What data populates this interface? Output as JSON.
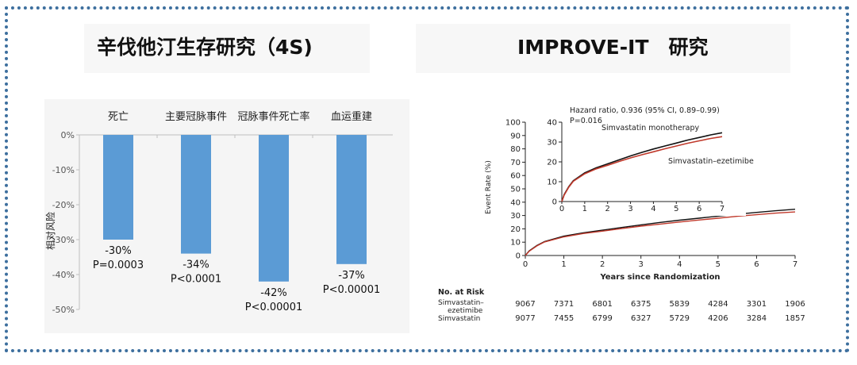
{
  "left_panel": {
    "title": "辛伐他汀生存研究（4S)",
    "ylabel": "相对风险",
    "p_values": [
      "P=0.0003",
      "P<0.0001",
      "P<0.00001",
      "P<0.00001"
    ]
  },
  "right_panel": {
    "title": "IMPROVE-IT　研究",
    "hazard_line1": "Hazard ratio, 0.936 (95% CI, 0.89–0.99)",
    "hazard_line2": "P=0.016",
    "label_mono": "Simvastatin monotherapy",
    "label_ez": "Simvastatin–ezetimibe",
    "ylabel": "Event Rate (%)",
    "xlabel": "Years since Randomization",
    "risk_header": "No. at Risk",
    "risk_rows": [
      {
        "label1": "Simvastatin–",
        "label2": "ezetimibe",
        "values": [
          "9067",
          "7371",
          "6801",
          "6375",
          "5839",
          "4284",
          "3301",
          "1906"
        ]
      },
      {
        "label1": "Simvastatin",
        "label2": "",
        "values": [
          "9077",
          "7455",
          "6799",
          "6327",
          "5729",
          "4206",
          "3284",
          "1857"
        ]
      }
    ]
  },
  "colors": {
    "bar": "#5b9bd5",
    "frame": "#3d6f9e",
    "ezetimibe": "#c0392b",
    "mono": "#111111"
  },
  "chart_data": [
    {
      "type": "bar",
      "title": "辛伐他汀生存研究（4S)",
      "categories": [
        "死亡",
        "主要冠脉事件",
        "冠脉事件死亡率",
        "血运重建"
      ],
      "values": [
        -30,
        -34,
        -42,
        -37
      ],
      "data_labels": [
        "-30%",
        "-34%",
        "-42%",
        "-37%"
      ],
      "ylabel": "相对风险",
      "ylim": [
        -50,
        0
      ],
      "yticks": [
        0,
        -10,
        -20,
        -30,
        -40,
        -50
      ],
      "ytick_labels": [
        "0%",
        "-10%",
        "-20%",
        "-30%",
        "-40%",
        "-50%"
      ],
      "grid": false
    },
    {
      "type": "line",
      "title": "IMPROVE-IT　研究",
      "xlabel": "Years since Randomization",
      "ylabel": "Event Rate (%)",
      "xlim": [
        0,
        7
      ],
      "ylim": [
        0,
        100
      ],
      "xticks": [
        0,
        1,
        2,
        3,
        4,
        5,
        6,
        7
      ],
      "yticks": [
        0,
        10,
        20,
        30,
        40,
        50,
        60,
        70,
        80,
        90,
        100
      ],
      "series": [
        {
          "name": "Simvastatin monotherapy",
          "x": [
            0,
            0.1,
            0.3,
            0.5,
            1,
            1.5,
            2,
            2.5,
            3,
            3.5,
            4,
            4.5,
            5,
            5.5,
            6,
            6.5,
            7
          ],
          "y": [
            0,
            3.5,
            7.5,
            10.5,
            14.5,
            17,
            19,
            21,
            23,
            24.8,
            26.5,
            28,
            29.5,
            31,
            32.3,
            33.6,
            34.7
          ]
        },
        {
          "name": "Simvastatin–ezetimibe",
          "x": [
            0,
            0.1,
            0.3,
            0.5,
            1,
            1.5,
            2,
            2.5,
            3,
            3.5,
            4,
            4.5,
            5,
            5.5,
            6,
            6.5,
            7
          ],
          "y": [
            0,
            3.2,
            7.2,
            10.2,
            14,
            16.5,
            18.3,
            20.2,
            22,
            23.6,
            25.1,
            26.6,
            28,
            29.4,
            30.6,
            31.8,
            32.7
          ]
        }
      ],
      "inset": {
        "xlim": [
          0,
          7
        ],
        "ylim": [
          0,
          40
        ],
        "xticks": [
          0,
          1,
          2,
          3,
          4,
          5,
          6,
          7
        ],
        "yticks": [
          0,
          10,
          20,
          30,
          40
        ],
        "annotations": [
          "Hazard ratio, 0.936 (95% CI, 0.89–0.99)",
          "P=0.016"
        ]
      },
      "risk_table": {
        "header": "No. at Risk",
        "rows": [
          {
            "name": "Simvastatin–ezetimibe",
            "values": [
              9067,
              7371,
              6801,
              6375,
              5839,
              4284,
              3301,
              1906
            ]
          },
          {
            "name": "Simvastatin",
            "values": [
              9077,
              7455,
              6799,
              6327,
              5729,
              4206,
              3284,
              1857
            ]
          }
        ]
      }
    }
  ]
}
